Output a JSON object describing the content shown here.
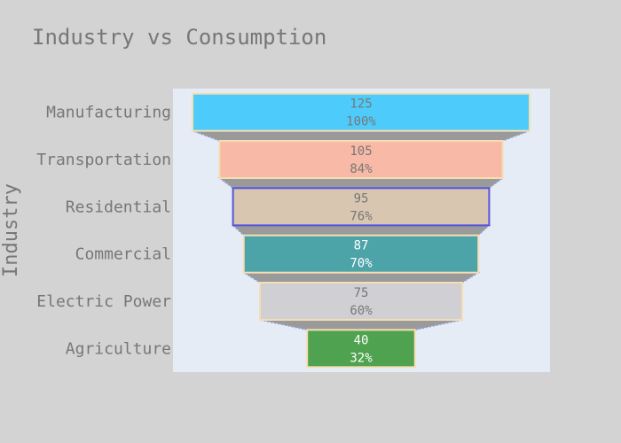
{
  "chart_data": {
    "type": "funnel",
    "title": "Industry vs Consumption",
    "ylabel": "Industry",
    "categories": [
      "Manufacturing",
      "Transportation",
      "Residential",
      "Commercial",
      "Electric Power",
      "Agriculture"
    ],
    "values": [
      125,
      105,
      95,
      87,
      75,
      40
    ],
    "percent_labels": [
      "100%",
      "84%",
      "76%",
      "70%",
      "60%",
      "32%"
    ],
    "colors": [
      "#4dccfc",
      "#f8b9a6",
      "#d9c6b1",
      "#4ca3a8",
      "#d0d0d4",
      "#4fa24f"
    ],
    "border_colors": [
      "#f5deb3",
      "#f5deb3",
      "#5555dd",
      "#f5deb3",
      "#f5deb3",
      "#f5deb3"
    ],
    "label_colors": [
      "#777777",
      "#777777",
      "#777777",
      "#ffffff",
      "#777777",
      "#ffffff"
    ],
    "connector_color": "#9a9a9a",
    "plot_background": "#e5ecf6",
    "page_background": "#d3d3d3"
  }
}
